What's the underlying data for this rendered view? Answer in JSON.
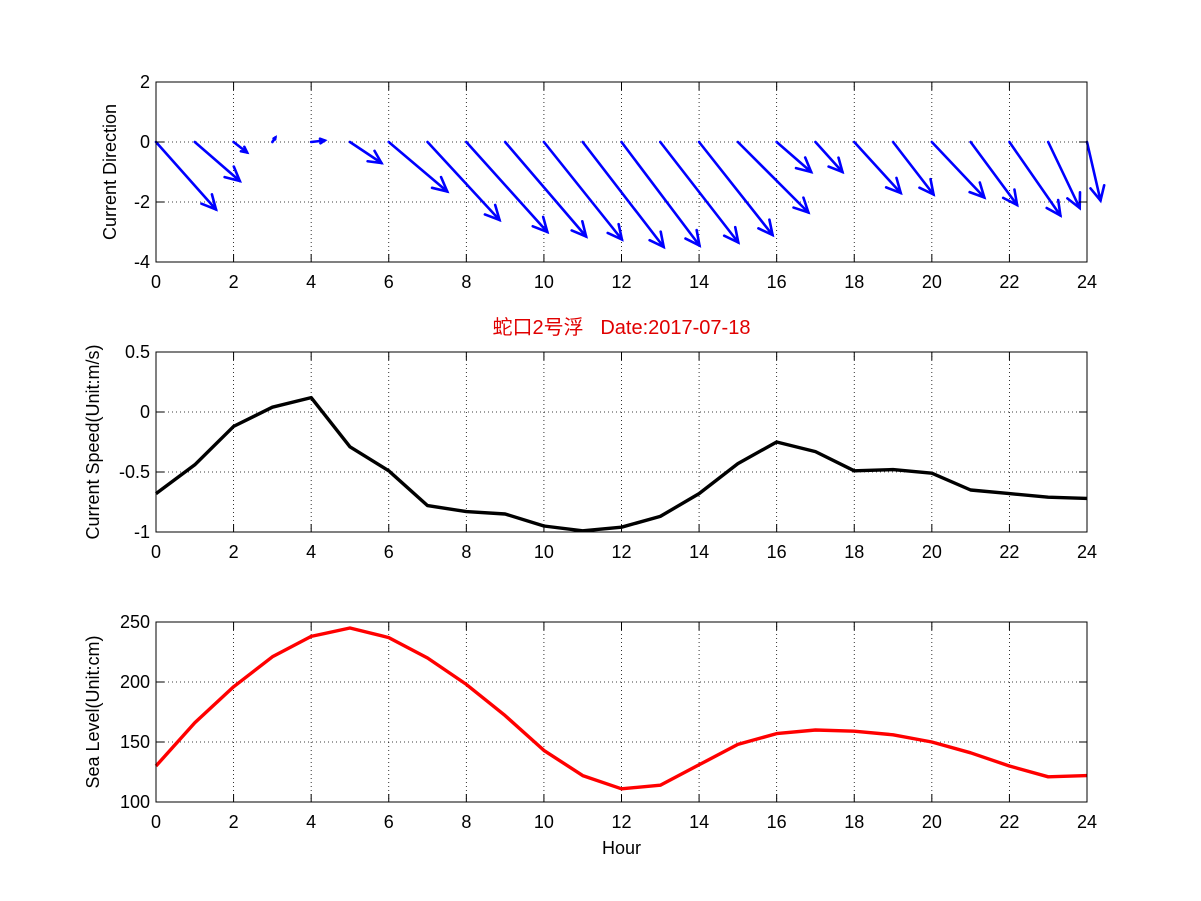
{
  "chart_data": [
    {
      "type": "quiver",
      "ylabel": "Current Direction",
      "xlim": [
        0,
        24
      ],
      "ylim": [
        -4,
        2
      ],
      "xticks": [
        0,
        2,
        4,
        6,
        8,
        10,
        12,
        14,
        16,
        18,
        20,
        22,
        24
      ],
      "yticks": [
        -4,
        -2,
        0,
        2
      ],
      "grid": true,
      "color": "#0000ff",
      "x": [
        0,
        1,
        2,
        3,
        4,
        5,
        6,
        7,
        8,
        9,
        10,
        11,
        12,
        13,
        14,
        15,
        16,
        17,
        18,
        19,
        20,
        21,
        22,
        23,
        24
      ],
      "u": [
        2.0,
        1.5,
        0.45,
        0.1,
        0.45,
        1.05,
        1.95,
        2.4,
        2.7,
        2.7,
        2.6,
        2.7,
        2.6,
        2.6,
        2.45,
        2.35,
        1.15,
        0.9,
        1.55,
        1.35,
        1.75,
        1.55,
        1.7,
        1.05,
        0.45
      ],
      "v": [
        -2.25,
        -1.3,
        -0.35,
        0.15,
        0.05,
        -0.7,
        -1.65,
        -2.6,
        -3.0,
        -3.15,
        -3.25,
        -3.5,
        -3.45,
        -3.35,
        -3.1,
        -2.35,
        -1.0,
        -1.0,
        -1.7,
        -1.75,
        -1.85,
        -2.1,
        -2.45,
        -2.2,
        -1.95
      ]
    },
    {
      "type": "line",
      "title": "蛇口2号浮   Date:2017-07-18",
      "ylabel": "Current Speed(Unit:m/s)",
      "xlim": [
        0,
        24
      ],
      "ylim": [
        -1,
        0.5
      ],
      "xticks": [
        0,
        2,
        4,
        6,
        8,
        10,
        12,
        14,
        16,
        18,
        20,
        22,
        24
      ],
      "yticks": [
        "-1",
        "-0.5",
        "0",
        "0.5"
      ],
      "grid": true,
      "color": "#000000",
      "x": [
        0,
        1,
        2,
        3,
        4,
        5,
        6,
        7,
        8,
        9,
        10,
        11,
        12,
        13,
        14,
        15,
        16,
        17,
        18,
        19,
        20,
        21,
        22,
        23,
        24
      ],
      "y": [
        -0.68,
        -0.44,
        -0.12,
        0.04,
        0.12,
        -0.29,
        -0.49,
        -0.78,
        -0.83,
        -0.85,
        -0.95,
        -0.99,
        -0.96,
        -0.87,
        -0.68,
        -0.43,
        -0.25,
        -0.33,
        -0.49,
        -0.48,
        -0.51,
        -0.65,
        -0.68,
        -0.71,
        -0.72
      ]
    },
    {
      "type": "line",
      "xlabel": "Hour",
      "ylabel": "Sea Level(Unit:cm)",
      "xlim": [
        0,
        24
      ],
      "ylim": [
        100,
        250
      ],
      "xticks": [
        0,
        2,
        4,
        6,
        8,
        10,
        12,
        14,
        16,
        18,
        20,
        22,
        24
      ],
      "yticks": [
        100,
        150,
        200,
        250
      ],
      "grid": true,
      "color": "#ff0000",
      "x": [
        0,
        1,
        2,
        3,
        4,
        5,
        6,
        7,
        8,
        9,
        10,
        11,
        12,
        13,
        14,
        15,
        16,
        17,
        18,
        19,
        20,
        21,
        22,
        23,
        24
      ],
      "y": [
        130,
        166,
        196,
        221,
        238,
        245,
        237,
        220,
        198,
        172,
        143,
        122,
        111,
        114,
        131,
        148,
        157,
        160,
        159,
        156,
        150,
        141,
        130,
        121,
        122
      ]
    }
  ]
}
